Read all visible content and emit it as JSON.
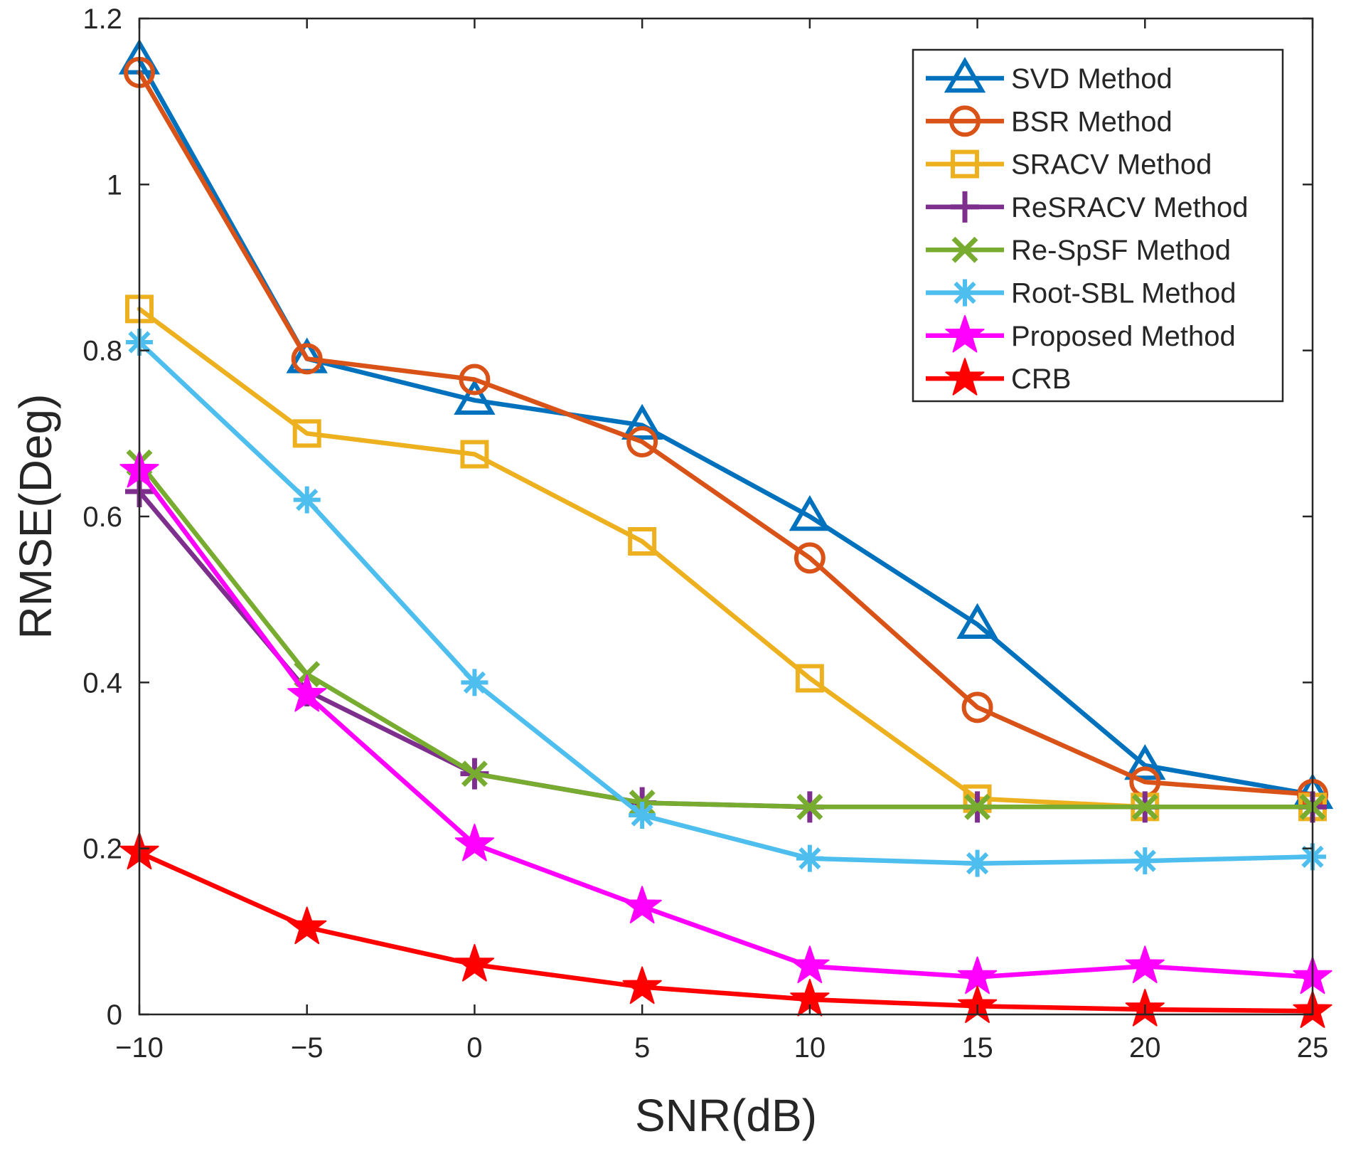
{
  "chart_data": {
    "type": "line",
    "title": "",
    "xlabel": "SNR(dB)",
    "ylabel": "RMSE(Deg)",
    "xlim": [
      -10,
      25
    ],
    "ylim": [
      0,
      1.2
    ],
    "x": [
      -10,
      -5,
      0,
      5,
      10,
      15,
      20,
      25
    ],
    "xticks": [
      -10,
      -5,
      0,
      5,
      10,
      15,
      20,
      25
    ],
    "xtick_labels": [
      "−10",
      "−5",
      "0",
      "5",
      "10",
      "15",
      "20",
      "25"
    ],
    "yticks": [
      0,
      0.2,
      0.4,
      0.6,
      0.8,
      1,
      1.2
    ],
    "ytick_labels": [
      "0",
      "0.2",
      "0.4",
      "0.6",
      "0.8",
      "1",
      "1.2"
    ],
    "grid": false,
    "legend_position": "top-right",
    "series": [
      {
        "name": "SVD Method",
        "color": "#0072BD",
        "marker": "triangle",
        "values": [
          1.15,
          0.79,
          0.74,
          0.71,
          0.6,
          0.47,
          0.3,
          0.265
        ]
      },
      {
        "name": "BSR Method",
        "color": "#D95319",
        "marker": "circle",
        "values": [
          1.135,
          0.79,
          0.765,
          0.69,
          0.55,
          0.37,
          0.28,
          0.265
        ]
      },
      {
        "name": "SRACV Method",
        "color": "#EDB120",
        "marker": "square",
        "values": [
          0.85,
          0.7,
          0.675,
          0.57,
          0.405,
          0.26,
          0.25,
          0.25
        ]
      },
      {
        "name": "ReSRACV Method",
        "color": "#7E2F8E",
        "marker": "plus",
        "values": [
          0.63,
          0.39,
          0.29,
          0.255,
          0.25,
          0.25,
          0.25,
          0.25
        ]
      },
      {
        "name": "Re-SpSF Method",
        "color": "#77AC30",
        "marker": "x",
        "values": [
          0.665,
          0.41,
          0.29,
          0.255,
          0.25,
          0.25,
          0.25,
          0.25
        ]
      },
      {
        "name": "Root-SBL Method",
        "color": "#4DBEEE",
        "marker": "asterisk",
        "values": [
          0.81,
          0.62,
          0.4,
          0.24,
          0.188,
          0.182,
          0.185,
          0.19
        ]
      },
      {
        "name": "Proposed Method",
        "color": "#FF00FF",
        "marker": "star",
        "values": [
          0.655,
          0.385,
          0.205,
          0.13,
          0.058,
          0.045,
          0.058,
          0.045
        ]
      },
      {
        "name": "CRB",
        "color": "#FF0000",
        "marker": "star",
        "values": [
          0.195,
          0.105,
          0.06,
          0.033,
          0.018,
          0.01,
          0.006,
          0.004
        ]
      }
    ]
  }
}
